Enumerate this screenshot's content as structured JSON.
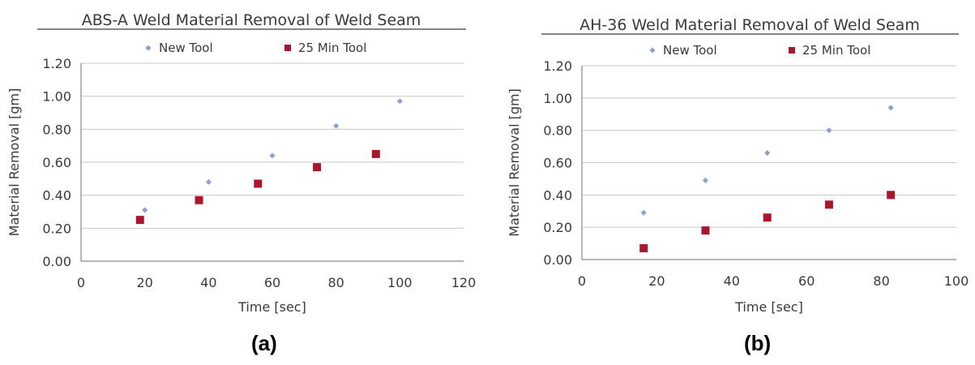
{
  "chart_data": [
    {
      "type": "scatter",
      "title": "ABS-A Weld Material Removal of Weld Seam",
      "xlabel": "Time [sec]",
      "ylabel": "Material Removal [gm]",
      "xlim": [
        0,
        120
      ],
      "ylim": [
        0,
        1.2
      ],
      "x_ticks": [
        "0",
        "20",
        "40",
        "60",
        "80",
        "100",
        "120"
      ],
      "y_ticks": [
        "0.00",
        "0.20",
        "0.40",
        "0.60",
        "0.80",
        "1.00",
        "1.20"
      ],
      "grid": "horizontal",
      "legend_position": "top",
      "series": [
        {
          "name": "New Tool",
          "color": "#8f9fd6",
          "marker": "small-diamond",
          "x": [
            20,
            40,
            60,
            80,
            100
          ],
          "y": [
            0.31,
            0.48,
            0.64,
            0.82,
            0.97
          ]
        },
        {
          "name": "25 Min Tool",
          "color": "#a8172b",
          "marker": "square",
          "x": [
            18.5,
            37,
            55.5,
            74,
            92.5
          ],
          "y": [
            0.25,
            0.37,
            0.47,
            0.57,
            0.65
          ]
        }
      ]
    },
    {
      "type": "scatter",
      "title": "AH-36 Weld Material Removal of Weld Seam",
      "xlabel": "Time [sec]",
      "ylabel": "Material Removal [gm]",
      "xlim": [
        0,
        100
      ],
      "ylim": [
        0,
        1.2
      ],
      "x_ticks": [
        "0",
        "20",
        "40",
        "60",
        "80",
        "100"
      ],
      "y_ticks": [
        "0.00",
        "0.20",
        "0.40",
        "0.60",
        "0.80",
        "1.00",
        "1.20"
      ],
      "grid": "horizontal",
      "legend_position": "top",
      "series": [
        {
          "name": "New Tool",
          "color": "#8f9fd6",
          "marker": "small-diamond",
          "x": [
            16.5,
            33,
            49.5,
            66,
            82.5
          ],
          "y": [
            0.29,
            0.49,
            0.66,
            0.8,
            0.94
          ]
        },
        {
          "name": "25 Min Tool",
          "color": "#a8172b",
          "marker": "square",
          "x": [
            16.5,
            33,
            49.5,
            66,
            82.5
          ],
          "y": [
            0.07,
            0.18,
            0.26,
            0.34,
            0.4
          ]
        }
      ]
    }
  ],
  "captions": [
    "(a)",
    "(b)"
  ]
}
